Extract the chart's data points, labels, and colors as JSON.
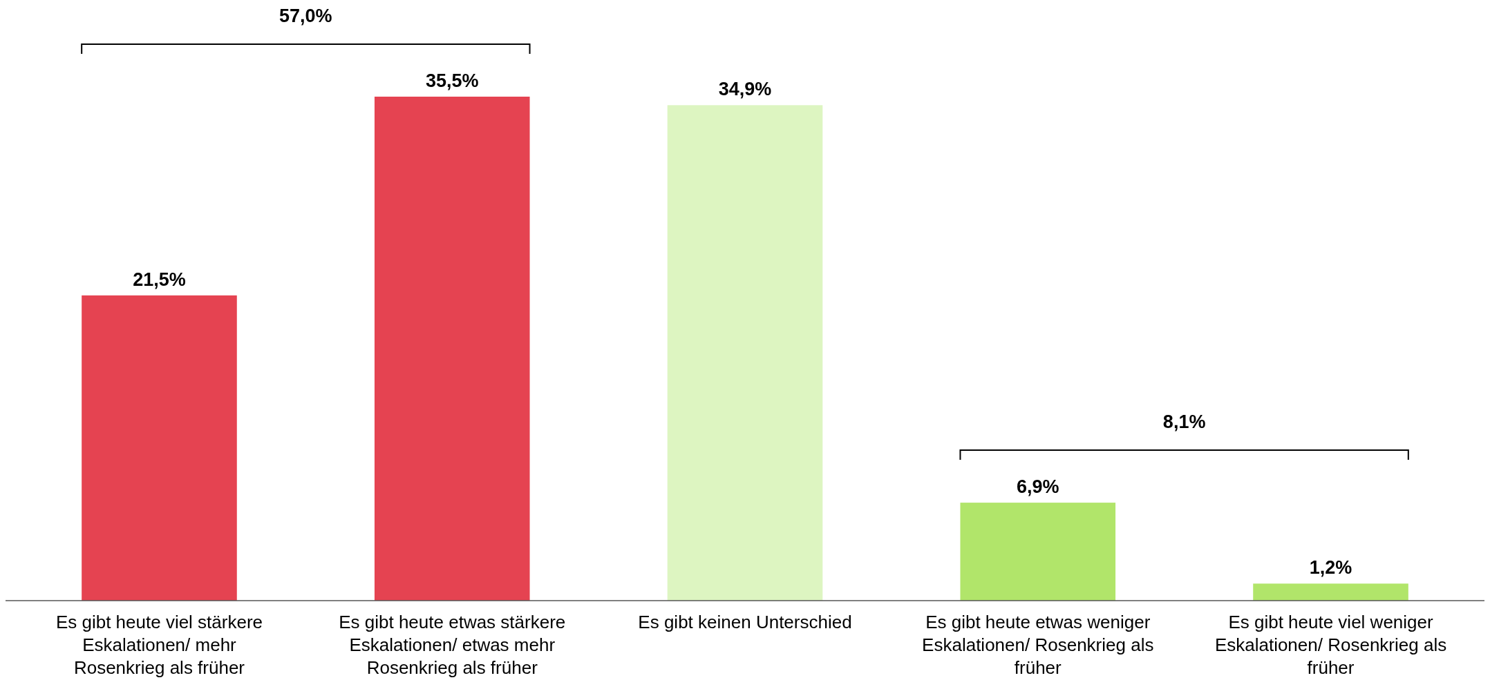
{
  "chart_data": {
    "type": "bar",
    "categories": [
      "Es gibt heute viel stärkere Eskalationen/ mehr Rosenkrieg als früher",
      "Es gibt heute etwas stärkere Eskalationen/ etwas mehr Rosenkrieg als früher",
      "Es gibt keinen Unterschied",
      "Es gibt heute etwas weniger Eskalationen/ Rosenkrieg als früher",
      "Es gibt heute viel weniger Eskalationen/ Rosenkrieg als früher"
    ],
    "values": [
      21.5,
      35.5,
      34.9,
      6.9,
      1.2
    ],
    "value_labels": [
      "21,5%",
      "35,5%",
      "34,9%",
      "6,9%",
      "1,2%"
    ],
    "colors": [
      "#e54351",
      "#e54351",
      "#ddf5c1",
      "#b1e56a",
      "#b1e56a"
    ],
    "annotations": [
      "57,0%",
      "8,1%"
    ]
  }
}
